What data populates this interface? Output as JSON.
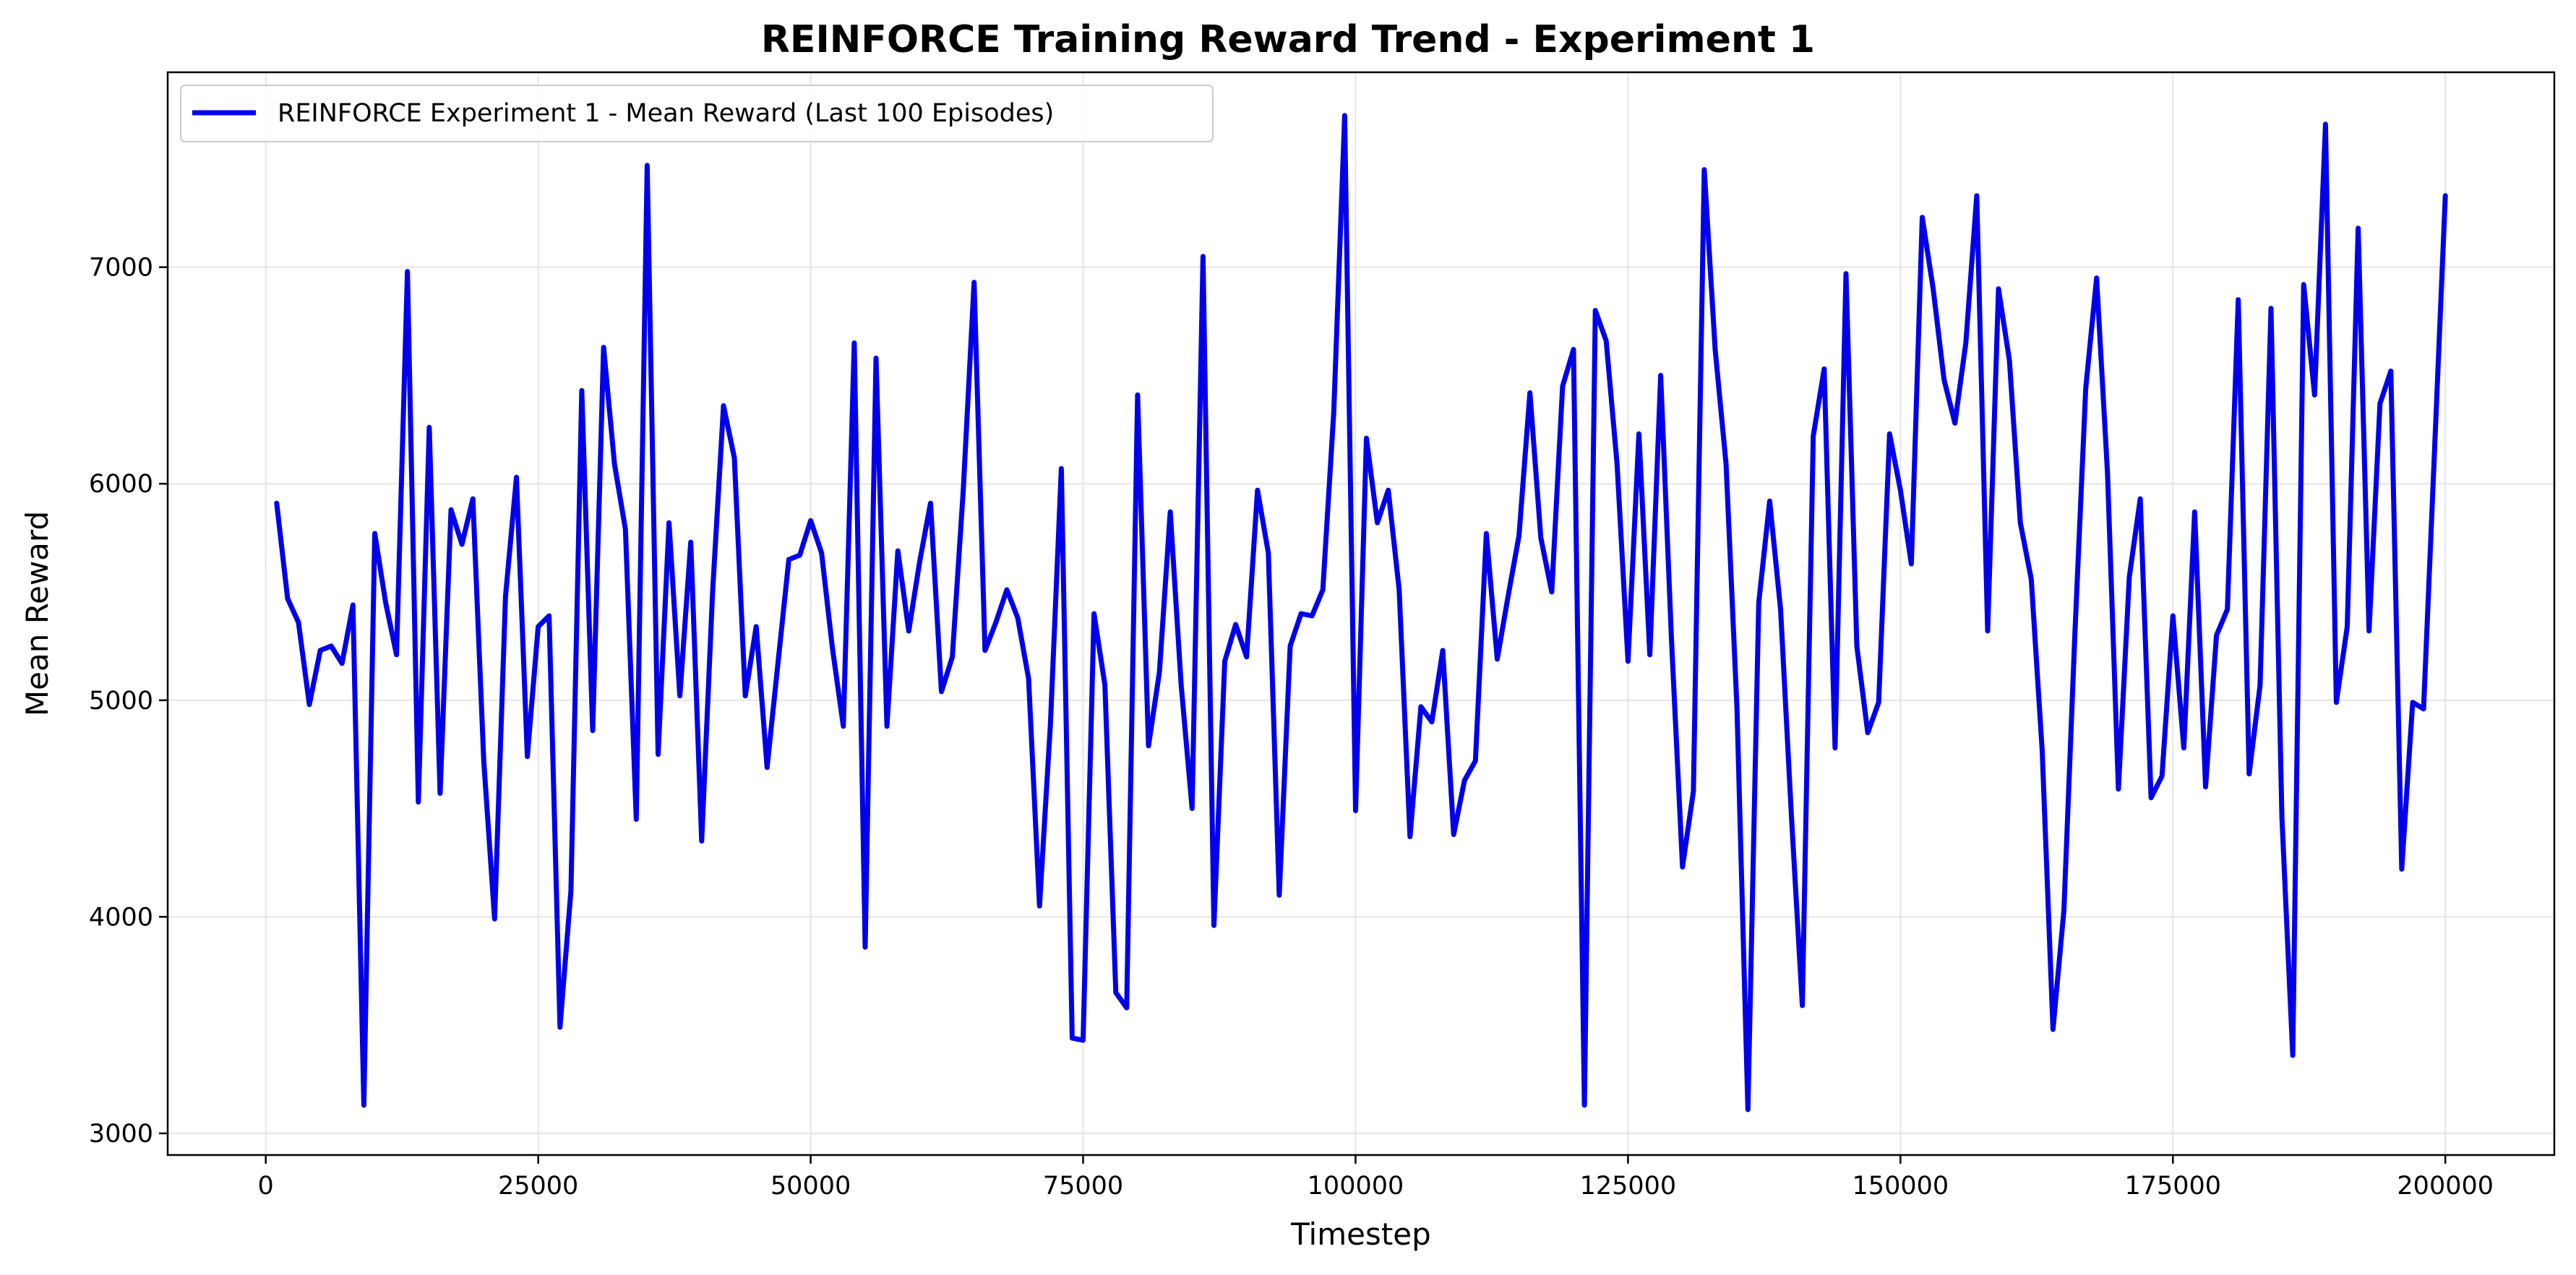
{
  "chart_data": {
    "type": "line",
    "title": "REINFORCE Training Reward Trend - Experiment 1",
    "xlabel": "Timestep",
    "ylabel": "Mean Reward",
    "xlim": [
      -9000,
      210000
    ],
    "ylim": [
      2900,
      7900
    ],
    "xticks": [
      0,
      25000,
      50000,
      75000,
      100000,
      125000,
      150000,
      175000,
      200000
    ],
    "yticks": [
      3000,
      4000,
      5000,
      6000,
      7000
    ],
    "grid": true,
    "legend_position": "top-left",
    "colors": {
      "line": "#0000ee",
      "grid": "#e5e5e5",
      "axis": "#000000"
    },
    "series": [
      {
        "name": "REINFORCE Experiment 1 - Mean Reward (Last 100 Episodes)",
        "x": [
          1000,
          2000,
          3000,
          4000,
          5000,
          6000,
          7000,
          8000,
          9000,
          10000,
          11000,
          12000,
          13000,
          14000,
          15000,
          16000,
          17000,
          18000,
          19000,
          20000,
          21000,
          22000,
          23000,
          24000,
          25000,
          26000,
          27000,
          28000,
          29000,
          30000,
          31000,
          32000,
          33000,
          34000,
          35000,
          36000,
          37000,
          38000,
          39000,
          40000,
          41000,
          42000,
          43000,
          44000,
          45000,
          46000,
          47000,
          48000,
          49000,
          50000,
          51000,
          52000,
          53000,
          54000,
          55000,
          56000,
          57000,
          58000,
          59000,
          60000,
          61000,
          62000,
          63000,
          64000,
          65000,
          66000,
          67000,
          68000,
          69000,
          70000,
          71000,
          72000,
          73000,
          74000,
          75000,
          76000,
          77000,
          78000,
          79000,
          80000,
          81000,
          82000,
          83000,
          84000,
          85000,
          86000,
          87000,
          88000,
          89000,
          90000,
          91000,
          92000,
          93000,
          94000,
          95000,
          96000,
          97000,
          98000,
          99000,
          100000,
          101000,
          102000,
          103000,
          104000,
          105000,
          106000,
          107000,
          108000,
          109000,
          110000,
          111000,
          112000,
          113000,
          114000,
          115000,
          116000,
          117000,
          118000,
          119000,
          120000,
          121000,
          122000,
          123000,
          124000,
          125000,
          126000,
          127000,
          128000,
          129000,
          130000,
          131000,
          132000,
          133000,
          134000,
          135000,
          136000,
          137000,
          138000,
          139000,
          140000,
          141000,
          142000,
          143000,
          144000,
          145000,
          146000,
          147000,
          148000,
          149000,
          150000,
          151000,
          152000,
          153000,
          154000,
          155000,
          156000,
          157000,
          158000,
          159000,
          160000,
          161000,
          162000,
          163000,
          164000,
          165000,
          166000,
          167000,
          168000,
          169000,
          170000,
          171000,
          172000,
          173000,
          174000,
          175000,
          176000,
          177000,
          178000,
          179000,
          180000,
          181000,
          182000,
          183000,
          184000,
          185000,
          186000,
          187000,
          188000,
          189000,
          190000,
          191000,
          192000,
          193000,
          194000,
          195000,
          196000,
          197000,
          198000,
          199000,
          200000
        ],
        "y": [
          5910,
          5470,
          5360,
          4980,
          5230,
          5250,
          5170,
          5440,
          3130,
          5770,
          5450,
          5210,
          6980,
          4530,
          6260,
          4570,
          5880,
          5720,
          5930,
          4720,
          3990,
          5480,
          6030,
          4740,
          5340,
          5390,
          3490,
          4120,
          6430,
          4860,
          6630,
          6090,
          5790,
          4450,
          7470,
          4750,
          5820,
          5020,
          5730,
          4350,
          5500,
          6360,
          6120,
          5020,
          5340,
          4690,
          5170,
          5650,
          5670,
          5830,
          5680,
          5240,
          4880,
          6650,
          3860,
          6580,
          4880,
          5690,
          5320,
          5640,
          5910,
          5040,
          5200,
          5970,
          6930,
          5230,
          5360,
          5510,
          5380,
          5100,
          4050,
          4890,
          6070,
          3440,
          3430,
          5400,
          5070,
          3650,
          3580,
          6410,
          4790,
          5130,
          5870,
          5070,
          4500,
          7050,
          3960,
          5180,
          5350,
          5200,
          5970,
          5680,
          4100,
          5250,
          5400,
          5390,
          5510,
          6330,
          7700,
          4490,
          6210,
          5820,
          5970,
          5510,
          4370,
          4970,
          4900,
          5230,
          4380,
          4630,
          4720,
          5770,
          5190,
          5480,
          5760,
          6420,
          5750,
          5500,
          6450,
          6620,
          3130,
          6800,
          6660,
          6090,
          5180,
          6230,
          5210,
          6500,
          5270,
          4230,
          4580,
          7450,
          6620,
          6090,
          4960,
          3110,
          5450,
          5920,
          5420,
          4460,
          3590,
          6220,
          6530,
          4780,
          6970,
          5250,
          4850,
          4990,
          6230,
          5970,
          5630,
          7230,
          6900,
          6480,
          6280,
          6650,
          7330,
          5320,
          6900,
          6570,
          5820,
          5560,
          4770,
          3480,
          4030,
          5300,
          6440,
          6950,
          6050,
          4590,
          5570,
          5930,
          4550,
          4650,
          5390,
          4780,
          5870,
          4600,
          5300,
          5420,
          6850,
          4660,
          5070,
          6810,
          4460,
          3360,
          6920,
          6410,
          7660,
          4990,
          5340,
          7180,
          5320,
          6370,
          6520,
          4220,
          4990,
          4960,
          6140,
          7330
        ]
      }
    ]
  }
}
